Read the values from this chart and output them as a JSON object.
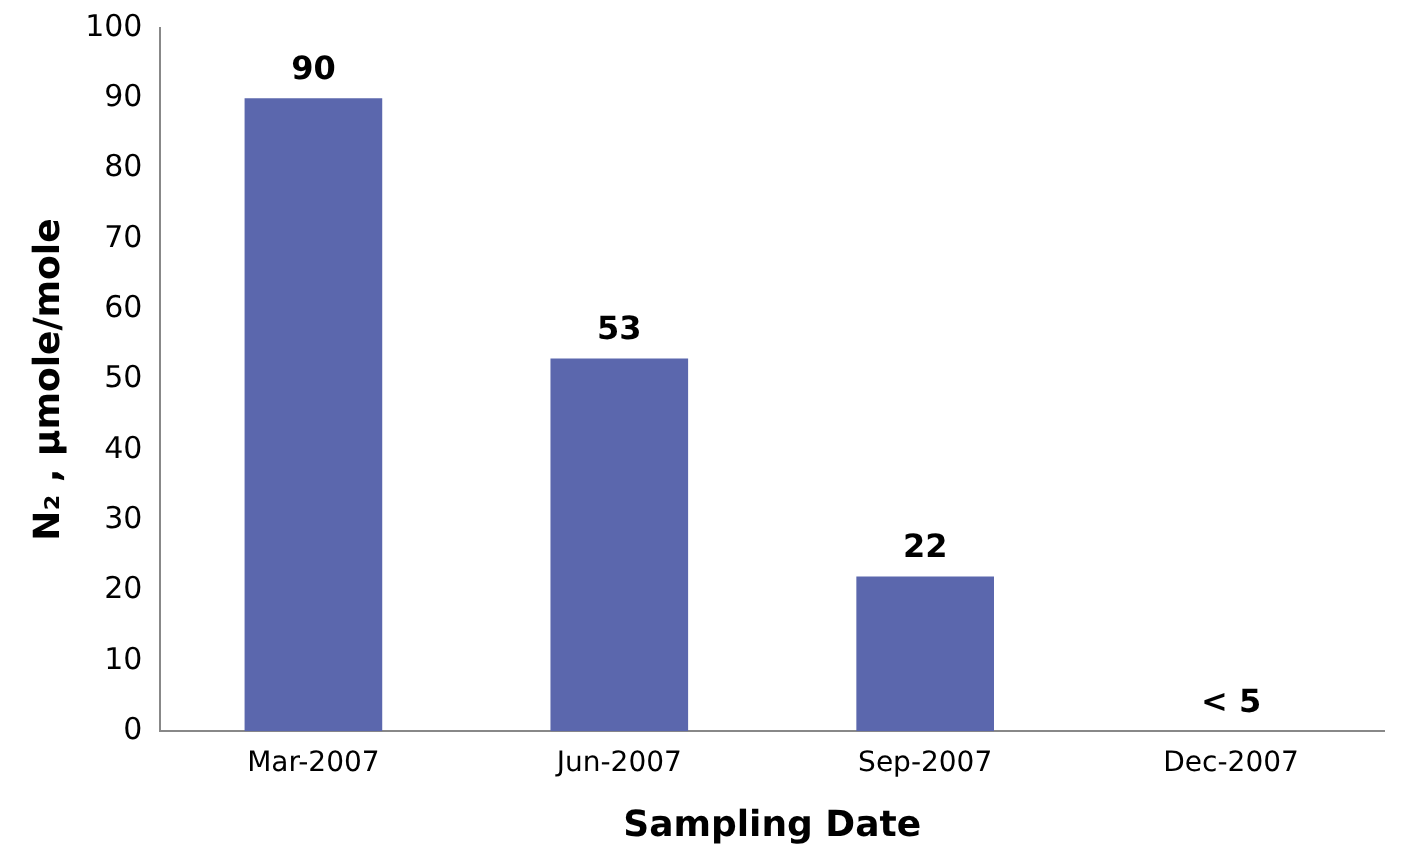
{
  "chart_data": {
    "type": "bar",
    "xlabel": "Sampling Date",
    "ylabel": "N₂ , µmole/mole",
    "categories": [
      "Mar-2007",
      "Jun-2007",
      "Sep-2007",
      "Dec-2007"
    ],
    "values": [
      90,
      53,
      22,
      null
    ],
    "value_labels": [
      "90",
      "53",
      "22",
      "< 5"
    ],
    "color": "#5b67ad",
    "ylim": [
      0,
      100
    ],
    "yticks": [
      0,
      10,
      20,
      30,
      40,
      50,
      60,
      70,
      80,
      90,
      100
    ],
    "grid": false,
    "legend": false
  }
}
